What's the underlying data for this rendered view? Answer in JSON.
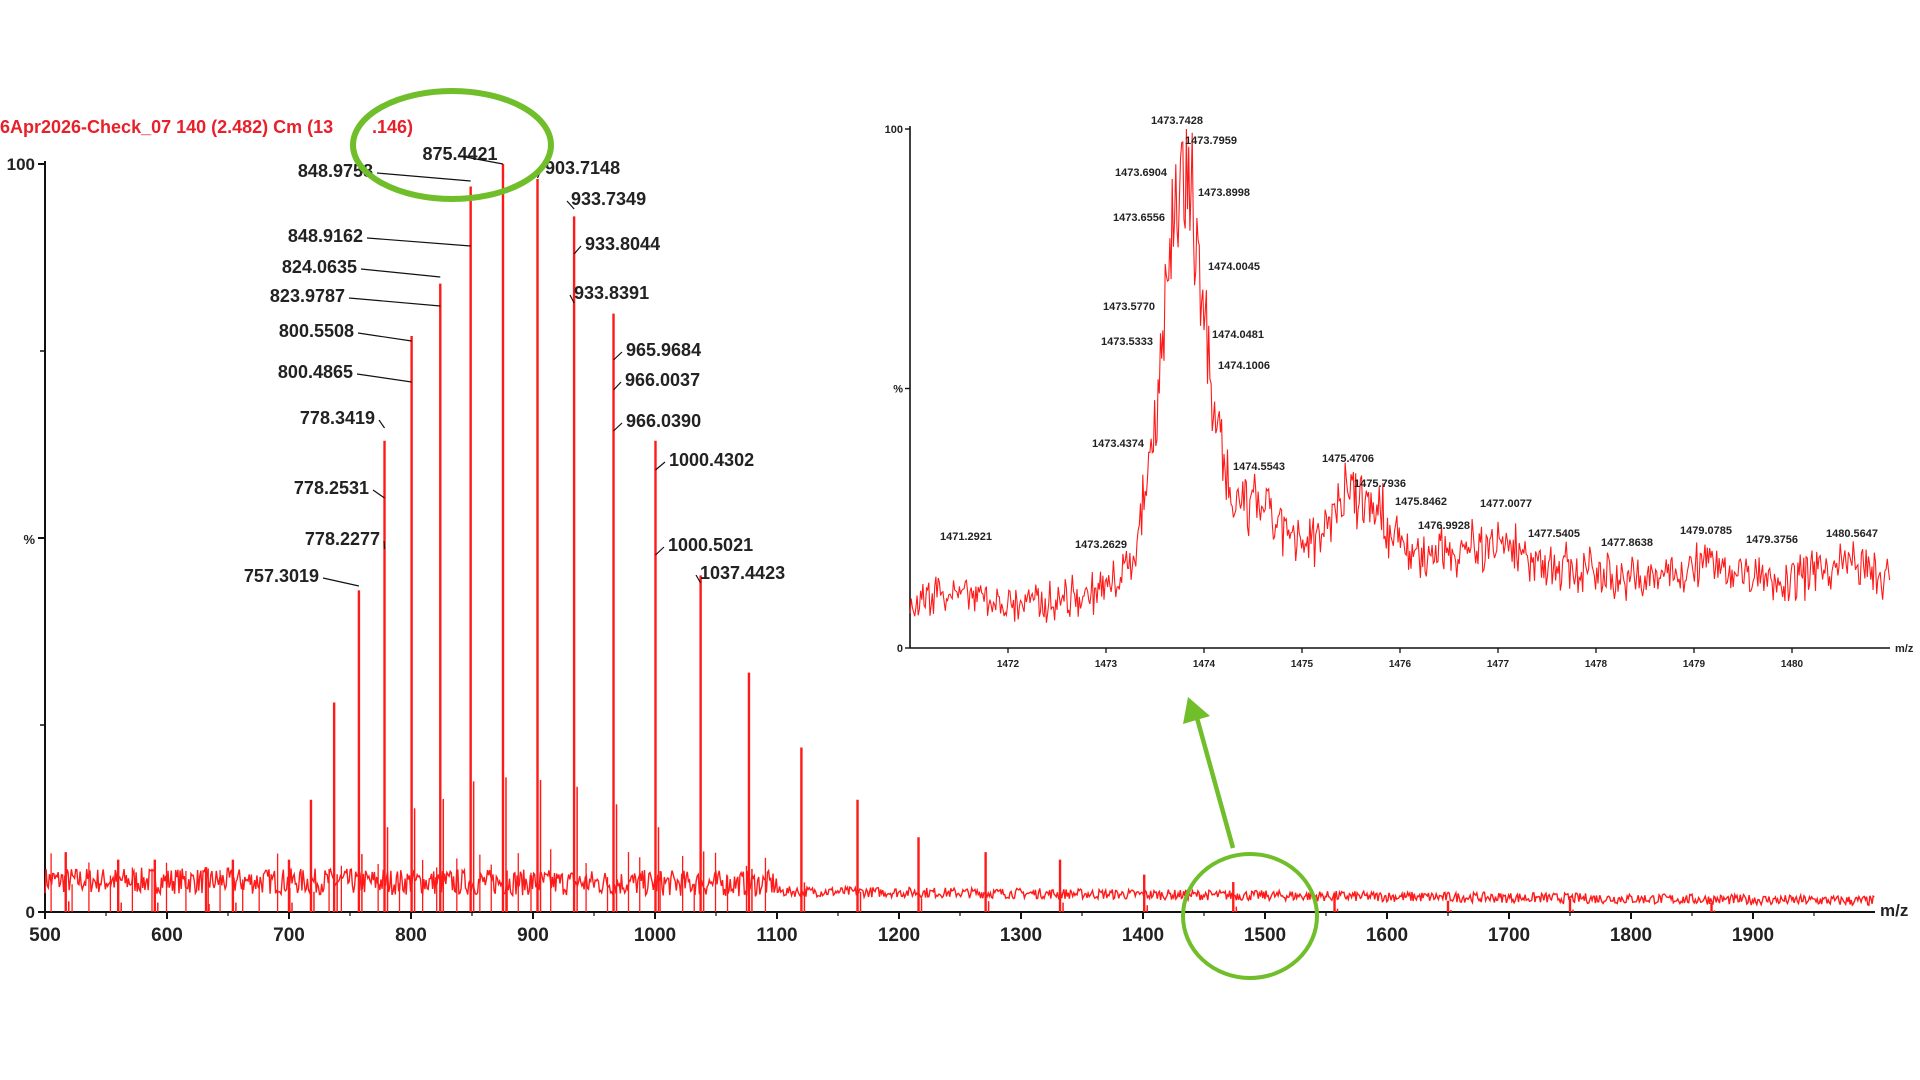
{
  "header": {
    "run_label": "6Apr2026-Check_07 140 (2.482) Cm (13",
    "run_label_tail": ".146)"
  },
  "colors": {
    "spectrum": "#ff1a1a",
    "axis": "#111111",
    "annotation": "#6fbe2a",
    "header": "#e8202a"
  },
  "chart_data": [
    {
      "type": "line",
      "name": "main-spectrum",
      "xlabel": "m/z",
      "ylabel": "%",
      "xlim": [
        500,
        2000
      ],
      "ylim": [
        0,
        100
      ],
      "x_ticks": [
        500,
        600,
        700,
        800,
        900,
        1000,
        1100,
        1200,
        1300,
        1400,
        1500,
        1600,
        1700,
        1800,
        1900
      ],
      "y_ticks": [
        "0",
        "%",
        "100"
      ],
      "peaks": [
        {
          "x": 517,
          "y": 8
        },
        {
          "x": 560,
          "y": 7
        },
        {
          "x": 590,
          "y": 7
        },
        {
          "x": 632,
          "y": 6
        },
        {
          "x": 654,
          "y": 7
        },
        {
          "x": 700,
          "y": 7
        },
        {
          "x": 718,
          "y": 15
        },
        {
          "x": 737,
          "y": 28
        },
        {
          "x": 757.3,
          "y": 43
        },
        {
          "x": 778.3,
          "y": 63
        },
        {
          "x": 800.5,
          "y": 77
        },
        {
          "x": 824.0,
          "y": 84
        },
        {
          "x": 848.9,
          "y": 97
        },
        {
          "x": 875.4,
          "y": 100
        },
        {
          "x": 903.7,
          "y": 98
        },
        {
          "x": 933.7,
          "y": 93
        },
        {
          "x": 966.0,
          "y": 80
        },
        {
          "x": 1000.4,
          "y": 63
        },
        {
          "x": 1037.4,
          "y": 45
        },
        {
          "x": 1077,
          "y": 32
        },
        {
          "x": 1120,
          "y": 22
        },
        {
          "x": 1166,
          "y": 15
        },
        {
          "x": 1216,
          "y": 10
        },
        {
          "x": 1271,
          "y": 8
        },
        {
          "x": 1332,
          "y": 7
        },
        {
          "x": 1401,
          "y": 5
        },
        {
          "x": 1474,
          "y": 4
        },
        {
          "x": 1557,
          "y": 2.5
        },
        {
          "x": 1650,
          "y": 1.5
        },
        {
          "x": 1750,
          "y": 1.8
        },
        {
          "x": 1866,
          "y": 1.2
        }
      ],
      "labels": [
        {
          "text": "757.3019",
          "x": 757.3
        },
        {
          "text": "778.2277",
          "x": 778.3
        },
        {
          "text": "778.2531",
          "x": 778.3
        },
        {
          "text": "778.3419",
          "x": 778.3
        },
        {
          "text": "800.4865",
          "x": 800.5
        },
        {
          "text": "800.5508",
          "x": 800.5
        },
        {
          "text": "823.9787",
          "x": 824.0
        },
        {
          "text": "824.0635",
          "x": 824.0
        },
        {
          "text": "848.9162",
          "x": 848.9
        },
        {
          "text": "848.9758",
          "x": 848.9
        },
        {
          "text": "875.4421",
          "x": 875.4
        },
        {
          "text": "903.7148",
          "x": 903.7
        },
        {
          "text": "933.7349",
          "x": 933.7
        },
        {
          "text": "933.8044",
          "x": 933.7
        },
        {
          "text": "933.8391",
          "x": 933.7
        },
        {
          "text": "965.9684",
          "x": 966.0
        },
        {
          "text": "966.0037",
          "x": 966.0
        },
        {
          "text": "966.0390",
          "x": 966.0
        },
        {
          "text": "1000.4302",
          "x": 1000.4
        },
        {
          "text": "1000.5021",
          "x": 1000.4
        },
        {
          "text": "1037.4423",
          "x": 1037.4
        }
      ]
    },
    {
      "type": "line",
      "name": "inset-spectrum",
      "xlabel": "m/z",
      "ylabel": "%",
      "xlim": [
        1471.0,
        1481.0
      ],
      "ylim": [
        0,
        100
      ],
      "x_ticks": [
        "1472",
        "1473",
        "1474",
        "1475",
        "1476",
        "1477",
        "1478",
        "1479",
        "1480"
      ],
      "y_ticks": [
        "0",
        "%",
        "100"
      ],
      "peaks": [
        {
          "x": 1471.0,
          "y": 8
        },
        {
          "x": 1471.3,
          "y": 12
        },
        {
          "x": 1472.0,
          "y": 9
        },
        {
          "x": 1472.5,
          "y": 10
        },
        {
          "x": 1473.0,
          "y": 12
        },
        {
          "x": 1473.26,
          "y": 17
        },
        {
          "x": 1473.44,
          "y": 38
        },
        {
          "x": 1473.53,
          "y": 55
        },
        {
          "x": 1473.58,
          "y": 65
        },
        {
          "x": 1473.66,
          "y": 84
        },
        {
          "x": 1473.69,
          "y": 90
        },
        {
          "x": 1473.74,
          "y": 100
        },
        {
          "x": 1473.8,
          "y": 95
        },
        {
          "x": 1473.9,
          "y": 90
        },
        {
          "x": 1474.0,
          "y": 72
        },
        {
          "x": 1474.05,
          "y": 58
        },
        {
          "x": 1474.1,
          "y": 50
        },
        {
          "x": 1474.3,
          "y": 28
        },
        {
          "x": 1474.55,
          "y": 30
        },
        {
          "x": 1475.0,
          "y": 20
        },
        {
          "x": 1475.47,
          "y": 33
        },
        {
          "x": 1475.79,
          "y": 30
        },
        {
          "x": 1475.85,
          "y": 25
        },
        {
          "x": 1476.2,
          "y": 18
        },
        {
          "x": 1476.99,
          "y": 22
        },
        {
          "x": 1477.0,
          "y": 22
        },
        {
          "x": 1477.54,
          "y": 17
        },
        {
          "x": 1477.86,
          "y": 16
        },
        {
          "x": 1478.5,
          "y": 14
        },
        {
          "x": 1479.08,
          "y": 18
        },
        {
          "x": 1479.38,
          "y": 16
        },
        {
          "x": 1480.0,
          "y": 14
        },
        {
          "x": 1480.56,
          "y": 18
        },
        {
          "x": 1481.0,
          "y": 14
        }
      ],
      "labels": [
        {
          "text": "1471.2921",
          "x": 1471.29
        },
        {
          "text": "1473.2629",
          "x": 1473.26
        },
        {
          "text": "1473.4374",
          "x": 1473.44
        },
        {
          "text": "1473.5333",
          "x": 1473.53
        },
        {
          "text": "1473.5770",
          "x": 1473.58
        },
        {
          "text": "1473.6556",
          "x": 1473.66
        },
        {
          "text": "1473.6904",
          "x": 1473.69
        },
        {
          "text": "1473.7428",
          "x": 1473.74
        },
        {
          "text": "1473.7959",
          "x": 1473.8
        },
        {
          "text": "1473.8998",
          "x": 1473.9
        },
        {
          "text": "1474.0045",
          "x": 1474.0
        },
        {
          "text": "1474.0481",
          "x": 1474.05
        },
        {
          "text": "1474.1006",
          "x": 1474.1
        },
        {
          "text": "1474.5543",
          "x": 1474.55
        },
        {
          "text": "1475.4706",
          "x": 1475.47
        },
        {
          "text": "1475.7936",
          "x": 1475.79
        },
        {
          "text": "1475.8462",
          "x": 1475.85
        },
        {
          "text": "1476.9928",
          "x": 1476.99
        },
        {
          "text": "1477.0077",
          "x": 1477.01
        },
        {
          "text": "1477.5405",
          "x": 1477.54
        },
        {
          "text": "1477.8638",
          "x": 1477.86
        },
        {
          "text": "1479.0785",
          "x": 1479.08
        },
        {
          "text": "1479.3756",
          "x": 1479.38
        },
        {
          "text": "1480.5647",
          "x": 1480.56
        }
      ]
    }
  ]
}
